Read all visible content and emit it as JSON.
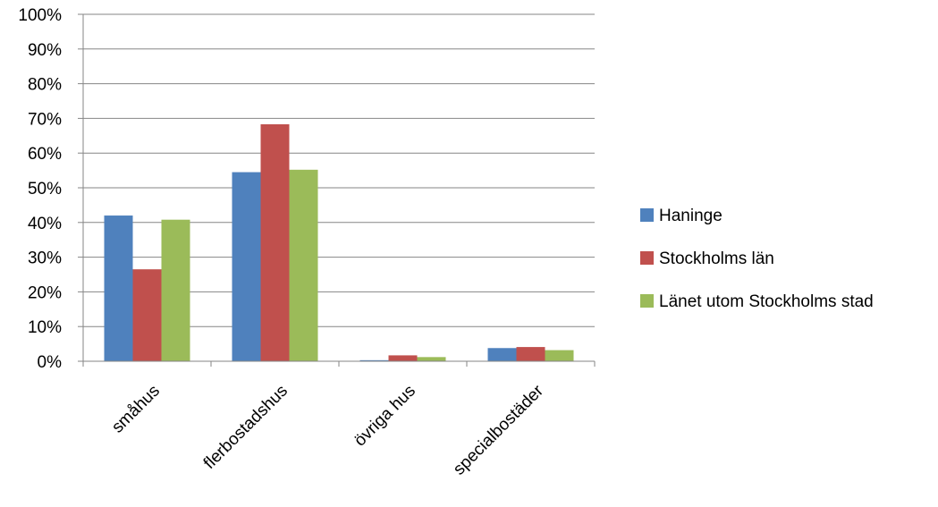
{
  "chart_data": {
    "type": "bar",
    "categories": [
      "småhus",
      "flerbostadshus",
      "övriga hus",
      "specialbostäder"
    ],
    "series": [
      {
        "name": "Haninge",
        "color": "#4F81BD",
        "values": [
          0.42,
          0.545,
          0.003,
          0.038
        ]
      },
      {
        "name": "Stockholms län",
        "color": "#C0504D",
        "values": [
          0.265,
          0.683,
          0.017,
          0.041
        ]
      },
      {
        "name": "Länet utom Stockholms stad",
        "color": "#9BBB59",
        "values": [
          0.408,
          0.552,
          0.012,
          0.032
        ]
      }
    ],
    "ylim": [
      0,
      1
    ],
    "yticks": [
      0,
      0.1,
      0.2,
      0.3,
      0.4,
      0.5,
      0.6,
      0.7,
      0.8,
      0.9,
      1.0
    ],
    "ytick_labels": [
      "0%",
      "10%",
      "20%",
      "30%",
      "40%",
      "50%",
      "60%",
      "70%",
      "80%",
      "90%",
      "100%"
    ],
    "grid": true,
    "legend_position": "right",
    "title": "",
    "xlabel": "",
    "ylabel": ""
  }
}
